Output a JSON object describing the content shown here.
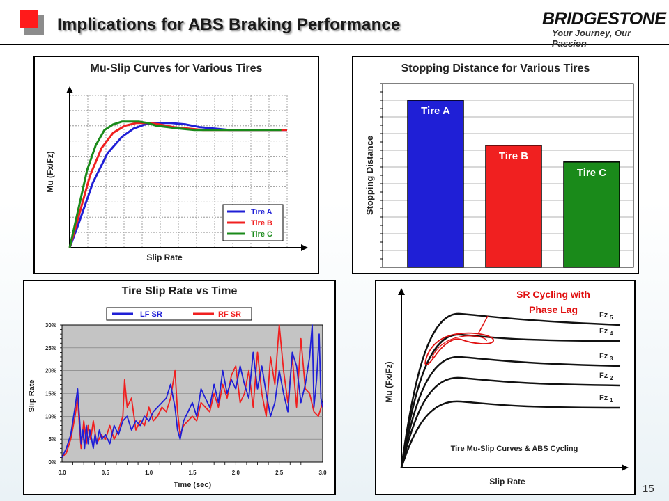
{
  "header": {
    "title": "Implications for ABS Braking Performance",
    "brand": "BRIDGESTONE",
    "tagline": "Your Journey, Our Passion"
  },
  "page_number": "15",
  "colors": {
    "tire_a": "#1f1fd6",
    "tire_b": "#f02020",
    "tire_c": "#1a8a1a",
    "lf": "#1f1fd6",
    "rf": "#f02020",
    "header_red": "#ff1a1a"
  },
  "chart_data": [
    {
      "type": "line",
      "title": "Mu-Slip Curves for Various Tires",
      "xlabel": "Slip Rate",
      "ylabel": "Mu (Fx/Fz)",
      "grid": true,
      "legend": "bottom-right",
      "series": [
        {
          "name": "Tire A",
          "color": "#1f1fd6",
          "x": [
            0,
            3,
            8,
            13,
            18,
            22,
            26,
            30,
            35,
            40,
            45,
            50,
            55,
            60,
            65,
            70,
            75
          ],
          "y": [
            0,
            0.17,
            0.47,
            0.68,
            0.8,
            0.86,
            0.89,
            0.9,
            0.9,
            0.89,
            0.87,
            0.86,
            0.85,
            0.85,
            0.85,
            0.85,
            0.85
          ]
        },
        {
          "name": "Tire B",
          "color": "#f02020",
          "x": [
            0,
            3,
            7,
            11,
            15,
            19,
            23,
            27,
            31,
            36,
            41,
            46,
            51,
            56,
            61,
            66,
            71,
            75
          ],
          "y": [
            0,
            0.22,
            0.52,
            0.72,
            0.83,
            0.88,
            0.9,
            0.9,
            0.89,
            0.87,
            0.86,
            0.85,
            0.85,
            0.85,
            0.85,
            0.85,
            0.85,
            0.85
          ]
        },
        {
          "name": "Tire C",
          "color": "#1a8a1a",
          "x": [
            0,
            3,
            6,
            9,
            12,
            15,
            18,
            21,
            24,
            27,
            30,
            34,
            38,
            43,
            48,
            53,
            58,
            63,
            68,
            73
          ],
          "y": [
            0,
            0.28,
            0.56,
            0.74,
            0.85,
            0.89,
            0.91,
            0.91,
            0.91,
            0.9,
            0.88,
            0.87,
            0.86,
            0.85,
            0.85,
            0.85,
            0.85,
            0.85,
            0.85,
            0.85
          ]
        }
      ],
      "xlim": [
        0,
        75
      ],
      "ylim": [
        0,
        1.1
      ],
      "legend_entries": [
        "Tire A",
        "Tire B",
        "Tire C"
      ]
    },
    {
      "type": "bar",
      "title": "Stopping Distance for Various Tires",
      "ylabel": "Stopping Distance",
      "categories": [
        "Tire A",
        "Tire B",
        "Tire C"
      ],
      "values": [
        100,
        73,
        63
      ],
      "colors": [
        "#1f1fd6",
        "#f02020",
        "#1a8a1a"
      ],
      "ylim": [
        0,
        110
      ],
      "grid": true
    },
    {
      "type": "line",
      "title": "Tire Slip Rate vs Time",
      "xlabel": "Time (sec)",
      "ylabel": "Slip Rate",
      "legend": "top",
      "grid": true,
      "xticks": [
        "0.0",
        "0.5",
        "1.0",
        "1.5",
        "2.0",
        "2.5",
        "3.0"
      ],
      "yticks": [
        "0%",
        "5%",
        "10%",
        "15%",
        "20%",
        "25%",
        "30%"
      ],
      "xlim": [
        0,
        3.0
      ],
      "ylim": [
        0,
        30
      ],
      "series": [
        {
          "name": "LF SR",
          "color": "#1f1fd6",
          "x": [
            0,
            0.05,
            0.1,
            0.15,
            0.18,
            0.2,
            0.22,
            0.24,
            0.26,
            0.28,
            0.3,
            0.32,
            0.34,
            0.36,
            0.38,
            0.4,
            0.43,
            0.46,
            0.5,
            0.55,
            0.6,
            0.65,
            0.7,
            0.75,
            0.8,
            0.85,
            0.9,
            0.95,
            1.0,
            1.05,
            1.1,
            1.15,
            1.2,
            1.25,
            1.3,
            1.33,
            1.36,
            1.4,
            1.45,
            1.5,
            1.55,
            1.6,
            1.65,
            1.7,
            1.75,
            1.8,
            1.85,
            1.9,
            1.95,
            2.0,
            2.05,
            2.1,
            2.15,
            2.2,
            2.25,
            2.3,
            2.35,
            2.4,
            2.45,
            2.5,
            2.55,
            2.6,
            2.65,
            2.7,
            2.75,
            2.8,
            2.85,
            2.88,
            2.9,
            2.93,
            2.96,
            2.98,
            3.0
          ],
          "y": [
            1,
            3,
            6,
            12,
            16,
            10,
            4,
            7,
            3,
            8,
            4,
            7,
            5,
            3,
            6,
            4,
            7,
            5,
            6,
            4,
            8,
            6,
            9,
            10,
            7,
            9,
            8,
            10,
            9,
            11,
            12,
            13,
            14,
            17,
            12,
            7,
            5,
            9,
            11,
            13,
            10,
            16,
            14,
            12,
            17,
            13,
            20,
            15,
            18,
            16,
            21,
            17,
            14,
            24,
            16,
            21,
            15,
            10,
            13,
            20,
            15,
            11,
            24,
            21,
            13,
            17,
            23,
            30,
            12,
            18,
            28,
            14,
            12
          ]
        },
        {
          "name": "RF SR",
          "color": "#f02020",
          "x": [
            0,
            0.05,
            0.1,
            0.15,
            0.18,
            0.2,
            0.22,
            0.25,
            0.28,
            0.3,
            0.33,
            0.36,
            0.4,
            0.45,
            0.5,
            0.55,
            0.6,
            0.65,
            0.7,
            0.72,
            0.75,
            0.8,
            0.85,
            0.9,
            0.95,
            1.0,
            1.05,
            1.1,
            1.15,
            1.2,
            1.25,
            1.3,
            1.33,
            1.36,
            1.4,
            1.45,
            1.5,
            1.55,
            1.6,
            1.65,
            1.7,
            1.75,
            1.8,
            1.85,
            1.9,
            1.95,
            2.0,
            2.05,
            2.1,
            2.15,
            2.2,
            2.25,
            2.3,
            2.35,
            2.4,
            2.45,
            2.5,
            2.55,
            2.6,
            2.65,
            2.7,
            2.75,
            2.8,
            2.85,
            2.9,
            2.95,
            3.0
          ],
          "y": [
            1,
            2,
            5,
            10,
            14,
            8,
            3,
            9,
            4,
            8,
            5,
            9,
            4,
            6,
            5,
            8,
            5,
            7,
            10,
            18,
            12,
            14,
            7,
            9,
            8,
            12,
            9,
            10,
            12,
            11,
            14,
            20,
            11,
            6,
            8,
            9,
            10,
            9,
            13,
            12,
            11,
            15,
            12,
            17,
            14,
            19,
            21,
            13,
            15,
            20,
            12,
            24,
            15,
            10,
            23,
            17,
            30,
            20,
            13,
            23,
            12,
            27,
            16,
            15,
            11,
            10,
            13
          ]
        }
      ]
    },
    {
      "type": "line",
      "title": "Tire Mu-Slip Curves & ABS Cycling",
      "xlabel": "Slip Rate",
      "ylabel": "Mu (Fx/Fz)",
      "annotation": "SR Cycling with Phase Lag",
      "series_labels": [
        "Fz",
        "Fz",
        "Fz",
        "Fz",
        "Fz"
      ],
      "series_subscripts": [
        "5",
        "4",
        "3",
        "2",
        "1"
      ]
    }
  ]
}
